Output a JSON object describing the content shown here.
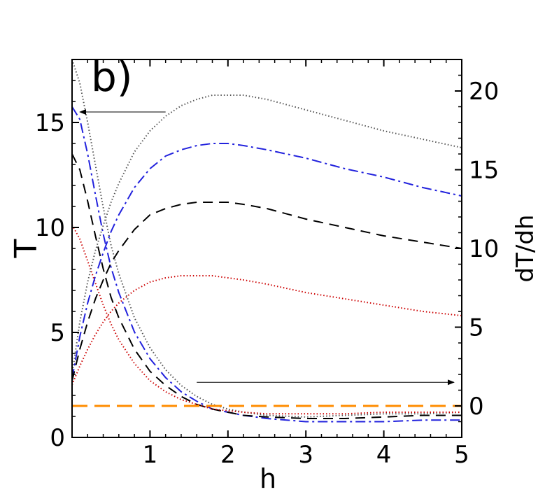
{
  "chart_data": {
    "type": "line",
    "panel_label": "b)",
    "xlabel": "h",
    "ylabel_left": "T",
    "ylabel_right": "dT/dh",
    "xlim": [
      0.0,
      5.0
    ],
    "ylim_left": [
      0,
      18
    ],
    "ylim_right": [
      -2,
      22
    ],
    "x_ticks": [
      1,
      2,
      3,
      4,
      5
    ],
    "y_left_ticks": [
      0,
      5,
      10,
      15
    ],
    "y_right_ticks": [
      0,
      5,
      10,
      15,
      20
    ],
    "grid": false,
    "legend": "none",
    "series": [
      {
        "axis": "right",
        "color": "#555555",
        "dash": "dotted",
        "x": [
          0.0,
          0.1,
          0.2,
          0.3,
          0.4,
          0.5,
          0.6,
          0.8,
          1.0,
          1.2,
          1.4,
          1.6,
          1.8,
          2.0,
          2.2,
          2.5,
          3.0,
          3.5,
          4.0,
          4.5,
          5.0
        ],
        "values": [
          22.0,
          20.5,
          18.0,
          15.3,
          12.6,
          10.2,
          8.4,
          5.6,
          3.7,
          2.3,
          1.3,
          0.6,
          0.1,
          -0.2,
          -0.4,
          -0.6,
          -0.7,
          -0.6,
          -0.5,
          -0.5,
          -0.4
        ]
      },
      {
        "axis": "right",
        "color": "#2222dd",
        "dash": "dashdot",
        "x": [
          0.0,
          0.1,
          0.2,
          0.3,
          0.4,
          0.5,
          0.6,
          0.8,
          1.0,
          1.2,
          1.4,
          1.6,
          1.8,
          2.0,
          2.2,
          2.5,
          3.0,
          3.5,
          4.0,
          4.5,
          5.0
        ],
        "values": [
          19.0,
          18.2,
          16.0,
          13.4,
          10.9,
          8.8,
          7.2,
          4.7,
          3.0,
          1.8,
          0.9,
          0.3,
          -0.2,
          -0.4,
          -0.6,
          -0.8,
          -1.0,
          -1.0,
          -1.0,
          -0.9,
          -0.9
        ]
      },
      {
        "axis": "right",
        "color": "#000000",
        "dash": "dashed",
        "x": [
          0.0,
          0.1,
          0.2,
          0.3,
          0.4,
          0.5,
          0.6,
          0.8,
          1.0,
          1.2,
          1.4,
          1.6,
          1.8,
          2.0,
          2.2,
          2.5,
          3.0,
          3.5,
          4.0,
          4.5,
          5.0
        ],
        "values": [
          16.0,
          15.0,
          13.0,
          10.8,
          8.7,
          6.9,
          5.6,
          3.6,
          2.2,
          1.3,
          0.6,
          0.1,
          -0.2,
          -0.4,
          -0.6,
          -0.7,
          -0.8,
          -0.8,
          -0.7,
          -0.6,
          -0.6
        ]
      },
      {
        "axis": "right",
        "color": "#cc0000",
        "dash": "dotted",
        "x": [
          0.0,
          0.1,
          0.2,
          0.3,
          0.4,
          0.5,
          0.6,
          0.8,
          1.0,
          1.2,
          1.4,
          1.6,
          1.8,
          2.0,
          2.2,
          2.5,
          3.0,
          3.5,
          4.0,
          4.5,
          5.0
        ],
        "values": [
          11.5,
          10.6,
          9.2,
          7.8,
          6.4,
          5.2,
          4.2,
          2.7,
          1.6,
          0.9,
          0.4,
          0.1,
          -0.2,
          -0.3,
          -0.4,
          -0.5,
          -0.5,
          -0.5,
          -0.4,
          -0.4,
          -0.4
        ]
      },
      {
        "axis": "left",
        "color": "#555555",
        "dash": "dotted",
        "x": [
          0.0,
          0.1,
          0.2,
          0.3,
          0.4,
          0.5,
          0.6,
          0.8,
          1.0,
          1.2,
          1.4,
          1.6,
          1.8,
          2.0,
          2.2,
          2.5,
          3.0,
          3.5,
          4.0,
          4.5,
          5.0
        ],
        "values": [
          3.0,
          5.5,
          7.4,
          8.9,
          10.1,
          11.2,
          12.1,
          13.6,
          14.6,
          15.3,
          15.8,
          16.1,
          16.3,
          16.3,
          16.3,
          16.1,
          15.6,
          15.1,
          14.6,
          14.2,
          13.8
        ]
      },
      {
        "axis": "left",
        "color": "#2222dd",
        "dash": "dashdot",
        "x": [
          0.0,
          0.1,
          0.2,
          0.3,
          0.4,
          0.5,
          0.6,
          0.8,
          1.0,
          1.2,
          1.4,
          1.6,
          1.8,
          2.0,
          2.2,
          2.5,
          3.0,
          3.5,
          4.0,
          4.5,
          5.0
        ],
        "values": [
          2.8,
          4.8,
          6.4,
          7.7,
          8.8,
          9.8,
          10.6,
          11.9,
          12.8,
          13.4,
          13.7,
          13.9,
          14.0,
          14.0,
          13.9,
          13.7,
          13.3,
          12.8,
          12.4,
          11.9,
          11.5
        ]
      },
      {
        "axis": "left",
        "color": "#000000",
        "dash": "dashed",
        "x": [
          0.0,
          0.1,
          0.2,
          0.3,
          0.4,
          0.5,
          0.6,
          0.8,
          1.0,
          1.2,
          1.4,
          1.6,
          1.8,
          2.0,
          2.2,
          2.5,
          3.0,
          3.5,
          4.0,
          4.5,
          5.0
        ],
        "values": [
          2.7,
          4.2,
          5.5,
          6.6,
          7.5,
          8.3,
          8.9,
          9.9,
          10.6,
          10.9,
          11.1,
          11.2,
          11.2,
          11.2,
          11.1,
          10.9,
          10.4,
          10.0,
          9.6,
          9.3,
          9.0
        ]
      },
      {
        "axis": "left",
        "color": "#cc0000",
        "dash": "dotted",
        "x": [
          0.0,
          0.1,
          0.2,
          0.3,
          0.4,
          0.5,
          0.6,
          0.8,
          1.0,
          1.2,
          1.4,
          1.6,
          1.8,
          2.0,
          2.2,
          2.5,
          3.0,
          3.5,
          4.0,
          4.5,
          5.0
        ],
        "values": [
          2.5,
          3.4,
          4.2,
          4.9,
          5.5,
          6.0,
          6.4,
          7.0,
          7.4,
          7.6,
          7.7,
          7.7,
          7.7,
          7.6,
          7.5,
          7.3,
          6.9,
          6.6,
          6.3,
          6.0,
          5.8
        ]
      },
      {
        "axis": "right",
        "color": "#ff8c00",
        "dash": "longdash",
        "x": [
          0.0,
          5.0
        ],
        "values": [
          0,
          0
        ]
      }
    ],
    "annotations": [
      {
        "type": "arrow",
        "from": [
          1.2,
          15.5
        ],
        "to": [
          0.1,
          15.5
        ],
        "axis": "left",
        "points_to": "left axis"
      },
      {
        "type": "arrow",
        "from": [
          1.6,
          1.5
        ],
        "to": [
          4.9,
          1.5
        ],
        "axis": "right",
        "points_to": "right axis"
      }
    ]
  }
}
